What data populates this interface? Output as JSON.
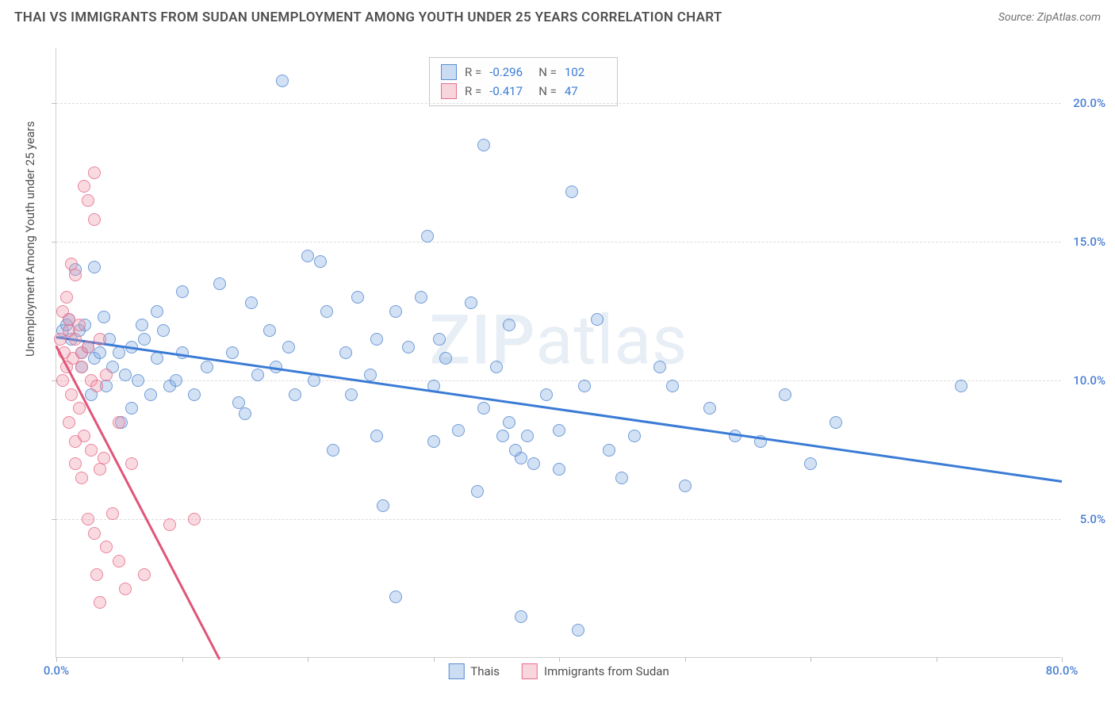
{
  "header": {
    "title": "THAI VS IMMIGRANTS FROM SUDAN UNEMPLOYMENT AMONG YOUTH UNDER 25 YEARS CORRELATION CHART",
    "source": "Source: ZipAtlas.com"
  },
  "watermark": "ZIPatlas",
  "chart": {
    "type": "scatter",
    "ylabel": "Unemployment Among Youth under 25 years",
    "xlim": [
      0,
      80
    ],
    "ylim": [
      0,
      22
    ],
    "xtick_positions": [
      0,
      10,
      20,
      30,
      40,
      50,
      60,
      70,
      80
    ],
    "xtick_labels": {
      "0": "0.0%",
      "80": "80.0%"
    },
    "ytick_positions": [
      5,
      10,
      15,
      20
    ],
    "ytick_labels": {
      "5": "5.0%",
      "10": "10.0%",
      "15": "15.0%",
      "20": "20.0%"
    },
    "background_color": "#ffffff",
    "grid_color": "#dcdcdc",
    "axis_color": "#d0d0d0",
    "series": [
      {
        "name": "Thais",
        "color_fill": "rgba(126,170,224,0.35)",
        "color_stroke": "#5a8cd2",
        "marker_radius": 8,
        "R": "-0.296",
        "N": "102",
        "trend": {
          "x1": 0,
          "y1": 11.6,
          "x2": 80,
          "y2": 6.4,
          "color": "#3a7bd5",
          "width": 2.5
        },
        "points": [
          [
            0.5,
            11.8
          ],
          [
            0.8,
            12.0
          ],
          [
            1.0,
            12.2
          ],
          [
            1.2,
            11.5
          ],
          [
            1.5,
            14.0
          ],
          [
            1.8,
            11.8
          ],
          [
            2.0,
            10.5
          ],
          [
            2.0,
            11.0
          ],
          [
            2.3,
            12.0
          ],
          [
            2.5,
            11.2
          ],
          [
            2.8,
            9.5
          ],
          [
            3.0,
            10.8
          ],
          [
            3.0,
            14.1
          ],
          [
            3.5,
            11.0
          ],
          [
            3.8,
            12.3
          ],
          [
            4.0,
            9.8
          ],
          [
            4.2,
            11.5
          ],
          [
            4.5,
            10.5
          ],
          [
            5.0,
            11.0
          ],
          [
            5.2,
            8.5
          ],
          [
            5.5,
            10.2
          ],
          [
            6.0,
            11.2
          ],
          [
            6.0,
            9.0
          ],
          [
            6.5,
            10.0
          ],
          [
            7.0,
            11.5
          ],
          [
            7.5,
            9.5
          ],
          [
            8.0,
            10.8
          ],
          [
            8.0,
            12.5
          ],
          [
            8.5,
            11.8
          ],
          [
            9.0,
            9.8
          ],
          [
            9.5,
            10.0
          ],
          [
            10.0,
            11.0
          ],
          [
            10.0,
            13.2
          ],
          [
            11.0,
            9.5
          ],
          [
            12.0,
            10.5
          ],
          [
            13.0,
            13.5
          ],
          [
            14.0,
            11.0
          ],
          [
            15.0,
            8.8
          ],
          [
            15.5,
            12.8
          ],
          [
            16.0,
            10.2
          ],
          [
            17.0,
            11.8
          ],
          [
            18.0,
            20.8
          ],
          [
            18.5,
            11.2
          ],
          [
            19.0,
            9.5
          ],
          [
            20.0,
            14.5
          ],
          [
            20.5,
            10.0
          ],
          [
            21.0,
            14.3
          ],
          [
            21.5,
            12.5
          ],
          [
            22.0,
            7.5
          ],
          [
            23.0,
            11.0
          ],
          [
            23.5,
            9.5
          ],
          [
            24.0,
            13.0
          ],
          [
            25.0,
            10.2
          ],
          [
            25.5,
            8.0
          ],
          [
            26.0,
            5.5
          ],
          [
            27.0,
            12.5
          ],
          [
            27.0,
            2.2
          ],
          [
            28.0,
            11.2
          ],
          [
            29.0,
            13.0
          ],
          [
            29.5,
            15.2
          ],
          [
            30.0,
            9.8
          ],
          [
            30.0,
            7.8
          ],
          [
            31.0,
            10.8
          ],
          [
            32.0,
            8.2
          ],
          [
            33.0,
            12.8
          ],
          [
            33.5,
            6.0
          ],
          [
            34.0,
            9.0
          ],
          [
            34.0,
            18.5
          ],
          [
            35.0,
            10.5
          ],
          [
            35.5,
            8.0
          ],
          [
            36.0,
            12.0
          ],
          [
            36.0,
            8.5
          ],
          [
            37.0,
            1.5
          ],
          [
            37.5,
            8.0
          ],
          [
            38.0,
            7.0
          ],
          [
            39.0,
            9.5
          ],
          [
            40.0,
            8.2
          ],
          [
            40.0,
            6.8
          ],
          [
            41.0,
            16.8
          ],
          [
            42.0,
            9.8
          ],
          [
            43.0,
            12.2
          ],
          [
            44.0,
            7.5
          ],
          [
            45.0,
            6.5
          ],
          [
            46.0,
            8.0
          ],
          [
            48.0,
            10.5
          ],
          [
            50.0,
            6.2
          ],
          [
            52.0,
            9.0
          ],
          [
            54.0,
            8.0
          ],
          [
            56.0,
            7.8
          ],
          [
            58.0,
            9.5
          ],
          [
            60.0,
            7.0
          ],
          [
            62.0,
            8.5
          ],
          [
            72.0,
            9.8
          ],
          [
            36.5,
            7.5
          ],
          [
            37.0,
            7.2
          ],
          [
            30.5,
            11.5
          ],
          [
            14.5,
            9.2
          ],
          [
            17.5,
            10.5
          ],
          [
            6.8,
            12.0
          ],
          [
            25.5,
            11.5
          ],
          [
            41.5,
            1.0
          ],
          [
            49.0,
            9.8
          ]
        ]
      },
      {
        "name": "Immigrants from Sudan",
        "color_fill": "rgba(240,150,170,0.35)",
        "color_stroke": "#e66e8c",
        "marker_radius": 8,
        "R": "-0.417",
        "N": "47",
        "trend": {
          "x1": 0,
          "y1": 11.3,
          "x2": 13,
          "y2": 0,
          "color": "#e05578",
          "width": 2.5
        },
        "points": [
          [
            0.3,
            11.5
          ],
          [
            0.5,
            10.0
          ],
          [
            0.5,
            12.5
          ],
          [
            0.6,
            11.0
          ],
          [
            0.8,
            10.5
          ],
          [
            0.8,
            13.0
          ],
          [
            1.0,
            8.5
          ],
          [
            1.0,
            11.8
          ],
          [
            1.0,
            12.2
          ],
          [
            1.2,
            9.5
          ],
          [
            1.2,
            14.2
          ],
          [
            1.3,
            10.8
          ],
          [
            1.5,
            7.0
          ],
          [
            1.5,
            11.5
          ],
          [
            1.5,
            13.8
          ],
          [
            1.8,
            9.0
          ],
          [
            1.8,
            12.0
          ],
          [
            2.0,
            6.5
          ],
          [
            2.0,
            10.5
          ],
          [
            2.0,
            11.0
          ],
          [
            2.2,
            8.0
          ],
          [
            2.2,
            17.0
          ],
          [
            2.5,
            5.0
          ],
          [
            2.5,
            11.2
          ],
          [
            2.5,
            16.5
          ],
          [
            2.8,
            7.5
          ],
          [
            2.8,
            10.0
          ],
          [
            3.0,
            4.5
          ],
          [
            3.0,
            17.5
          ],
          [
            3.0,
            15.8
          ],
          [
            3.2,
            3.0
          ],
          [
            3.2,
            9.8
          ],
          [
            3.5,
            2.0
          ],
          [
            3.5,
            6.8
          ],
          [
            3.5,
            11.5
          ],
          [
            3.8,
            7.2
          ],
          [
            4.0,
            4.0
          ],
          [
            4.0,
            10.2
          ],
          [
            4.5,
            5.2
          ],
          [
            5.0,
            3.5
          ],
          [
            5.0,
            8.5
          ],
          [
            5.5,
            2.5
          ],
          [
            6.0,
            7.0
          ],
          [
            7.0,
            3.0
          ],
          [
            9.0,
            4.8
          ],
          [
            11.0,
            5.0
          ],
          [
            1.5,
            7.8
          ]
        ]
      }
    ],
    "legend_bottom": [
      {
        "swatch": "s1",
        "label": "Thais"
      },
      {
        "swatch": "s2",
        "label": "Immigrants from Sudan"
      }
    ]
  }
}
